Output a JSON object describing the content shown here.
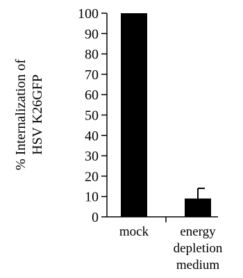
{
  "chart_data": {
    "type": "bar",
    "title": "",
    "ylabel_lines": [
      "% Internalization of",
      "HSV K26GFP"
    ],
    "xlabel": "",
    "categories": [
      {
        "lines": [
          "mock"
        ]
      },
      {
        "lines": [
          "energy",
          "depletion",
          "medium"
        ]
      }
    ],
    "values": [
      100,
      9
    ],
    "error_bars": [
      0,
      5
    ],
    "ylim": [
      0,
      100
    ],
    "yticks": [
      0,
      10,
      20,
      30,
      40,
      50,
      60,
      70,
      80,
      90,
      100
    ],
    "grid": false,
    "legend": "none",
    "colors": {
      "bar": "#000000",
      "axis": "#000000",
      "error_bar": "#000000"
    }
  }
}
